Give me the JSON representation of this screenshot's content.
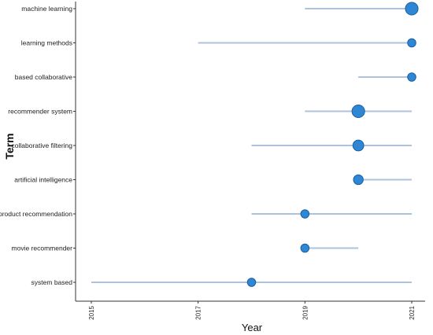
{
  "chart_data": {
    "type": "scatter",
    "title": "",
    "xlabel": "Year",
    "ylabel": "Term",
    "xlim": [
      2015,
      2021
    ],
    "xticks": [
      "2015",
      "2017",
      "2019",
      "2021"
    ],
    "grid": false,
    "colors": {
      "range_line": "#aec2dc",
      "point_fill": "#2e86d4",
      "point_stroke": "#1a5fa0",
      "axis": "#333333"
    },
    "terms": [
      {
        "term": "machine learning",
        "start": 2019,
        "end": 2021,
        "median": 2021,
        "frequency": 5
      },
      {
        "term": "learning methods",
        "start": 2017,
        "end": 2021,
        "median": 2021,
        "frequency": 1
      },
      {
        "term": "based collaborative",
        "start": 2020,
        "end": 2021,
        "median": 2021,
        "frequency": 1
      },
      {
        "term": "recommender system",
        "start": 2019,
        "end": 2021,
        "median": 2020,
        "frequency": 5
      },
      {
        "term": "collaborative filtering",
        "start": 2018,
        "end": 2021,
        "median": 2020,
        "frequency": 3
      },
      {
        "term": "artificial intelligence",
        "start": 2020,
        "end": 2021,
        "median": 2020,
        "frequency": 2
      },
      {
        "term": "product recommendation",
        "start": 2018,
        "end": 2021,
        "median": 2019,
        "frequency": 1
      },
      {
        "term": "movie recommender",
        "start": 2019,
        "end": 2020,
        "median": 2019,
        "frequency": 1
      },
      {
        "term": "system based",
        "start": 2015,
        "end": 2021,
        "median": 2018,
        "frequency": 1
      }
    ]
  }
}
